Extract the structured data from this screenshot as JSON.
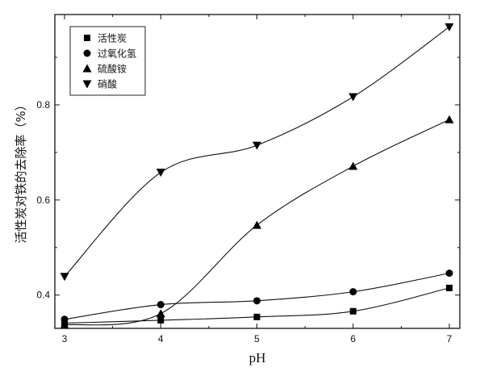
{
  "chart_data": {
    "type": "line",
    "title": "",
    "xlabel": "pH",
    "ylabel": "活性炭对铁的去除率（%）",
    "xlim": [
      3,
      7
    ],
    "ylim": [
      0.33,
      0.99
    ],
    "xticks": [
      "3",
      "4",
      "5",
      "6",
      "7"
    ],
    "yticks": [
      "0.4",
      "0.6",
      "0.8"
    ],
    "grid": false,
    "legend_position": "top-left",
    "x": [
      3,
      4,
      5,
      6,
      7
    ],
    "series": [
      {
        "name": "活性炭",
        "marker": "square",
        "values": [
          0.341,
          0.347,
          0.354,
          0.366,
          0.415
        ]
      },
      {
        "name": "过氧化氢",
        "marker": "circle",
        "values": [
          0.349,
          0.38,
          0.388,
          0.407,
          0.446
        ]
      },
      {
        "name": "硫酸铵",
        "marker": "triangle-up",
        "values": [
          0.337,
          0.361,
          0.547,
          0.671,
          0.769
        ]
      },
      {
        "name": "硝酸",
        "marker": "triangle-down",
        "values": [
          0.439,
          0.658,
          0.715,
          0.817,
          0.964
        ]
      }
    ],
    "colors": {
      "line": "#111111",
      "marker": "#000000"
    }
  }
}
